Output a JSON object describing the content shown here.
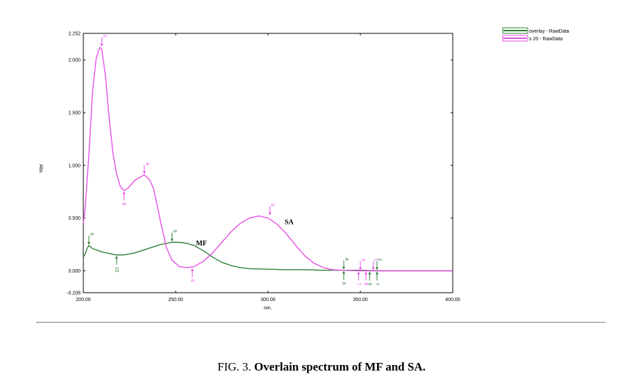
{
  "caption": {
    "prefix": "FIG. 3.",
    "title": "Overlain spectrum of MF and SA."
  },
  "chart_data": {
    "type": "line",
    "xlabel": "nm.",
    "ylabel": "Abs.",
    "xlim": [
      200.0,
      400.0
    ],
    "ylim": [
      -0.208,
      2.252
    ],
    "x_ticks": [
      200.0,
      250.0,
      300.0,
      350.0,
      400.0
    ],
    "x_tick_labels": [
      "200.00",
      "250.00",
      "300.00",
      "350.00",
      "400.00"
    ],
    "y_ticks": [
      -0.208,
      0.0,
      0.5,
      1.0,
      1.5,
      2.0,
      2.252
    ],
    "y_tick_labels": [
      "-0.208",
      "0.000",
      "0.500",
      "1.000",
      "1.500",
      "2.000",
      "2.252"
    ],
    "grid": false,
    "legend_position": "top-right-outside",
    "series": [
      {
        "name": "overlay - RawData",
        "color": "#2e7d32",
        "label": "MF",
        "x": [
          200,
          201,
          202,
          203,
          205,
          210,
          215,
          218,
          222,
          228,
          235,
          242,
          248,
          252,
          256,
          260,
          265,
          270,
          275,
          280,
          285,
          290,
          300,
          310,
          320,
          330,
          340,
          350,
          360,
          380,
          400
        ],
        "y": [
          0.13,
          0.16,
          0.21,
          0.24,
          0.21,
          0.18,
          0.16,
          0.15,
          0.15,
          0.17,
          0.21,
          0.25,
          0.27,
          0.27,
          0.26,
          0.24,
          0.19,
          0.13,
          0.08,
          0.05,
          0.03,
          0.02,
          0.015,
          0.01,
          0.01,
          0.005,
          0.005,
          0.005,
          0.0,
          0.0,
          0.0
        ]
      },
      {
        "name": "s 20 - RawData",
        "color": "#e64fe6",
        "label": "SA",
        "x": [
          200,
          201,
          203,
          205,
          207,
          209,
          210,
          212,
          214,
          216,
          218,
          220,
          222,
          224,
          226,
          228,
          230,
          233,
          236,
          238,
          240,
          242,
          245,
          248,
          252,
          256,
          260,
          265,
          270,
          275,
          280,
          285,
          290,
          295,
          300,
          305,
          310,
          315,
          320,
          325,
          330,
          335,
          340,
          350,
          360,
          380,
          400
        ],
        "y": [
          0.45,
          0.6,
          1.1,
          1.7,
          2.02,
          2.12,
          2.1,
          1.85,
          1.45,
          1.12,
          0.92,
          0.8,
          0.76,
          0.78,
          0.82,
          0.86,
          0.88,
          0.91,
          0.86,
          0.78,
          0.62,
          0.45,
          0.22,
          0.1,
          0.04,
          0.03,
          0.04,
          0.09,
          0.17,
          0.27,
          0.37,
          0.45,
          0.5,
          0.52,
          0.5,
          0.44,
          0.35,
          0.24,
          0.14,
          0.07,
          0.03,
          0.01,
          0.005,
          0.0,
          0.0,
          0.0,
          0.0
        ]
      }
    ],
    "markers": [
      {
        "series": 1,
        "x": 210,
        "y": 2.12,
        "label": "5",
        "dir": "down"
      },
      {
        "series": 1,
        "x": 222,
        "y": 0.76,
        "label": "8",
        "dir": "up"
      },
      {
        "series": 1,
        "x": 233,
        "y": 0.91,
        "label": "4",
        "dir": "down"
      },
      {
        "series": 1,
        "x": 259,
        "y": 0.03,
        "label": "6",
        "dir": "up"
      },
      {
        "series": 1,
        "x": 301,
        "y": 0.52,
        "label": "3",
        "dir": "down"
      },
      {
        "series": 0,
        "x": 203,
        "y": 0.24,
        "label": "6",
        "dir": "down"
      },
      {
        "series": 0,
        "x": 218,
        "y": 0.15,
        "label": "10",
        "dir": "up"
      },
      {
        "series": 0,
        "x": 248,
        "y": 0.27,
        "label": "5",
        "dir": "down"
      },
      {
        "series": 0,
        "x": 341,
        "y": 0.005,
        "label": "4",
        "dir": "down"
      },
      {
        "series": 0,
        "x": 341,
        "y": 0.005,
        "label": "6",
        "dir": "up"
      },
      {
        "series": 1,
        "x": 350,
        "y": 0.0,
        "label": "3",
        "dir": "down"
      },
      {
        "series": 1,
        "x": 349,
        "y": 0.0,
        "label": "7",
        "dir": "up"
      },
      {
        "series": 1,
        "x": 353,
        "y": 0.0,
        "label": "8",
        "dir": "up"
      },
      {
        "series": 0,
        "x": 355,
        "y": 0.0,
        "label": "9",
        "dir": "up"
      },
      {
        "series": 1,
        "x": 357,
        "y": 0.0,
        "label": "1",
        "dir": "down"
      },
      {
        "series": 0,
        "x": 359,
        "y": 0.0,
        "label": "2",
        "dir": "down"
      },
      {
        "series": 0,
        "x": 359,
        "y": 0.0,
        "label": "7",
        "dir": "up"
      }
    ],
    "annotations": [
      {
        "text": "MF",
        "x": 261,
        "y": 0.24
      },
      {
        "text": "SA",
        "x": 309,
        "y": 0.44
      }
    ]
  }
}
